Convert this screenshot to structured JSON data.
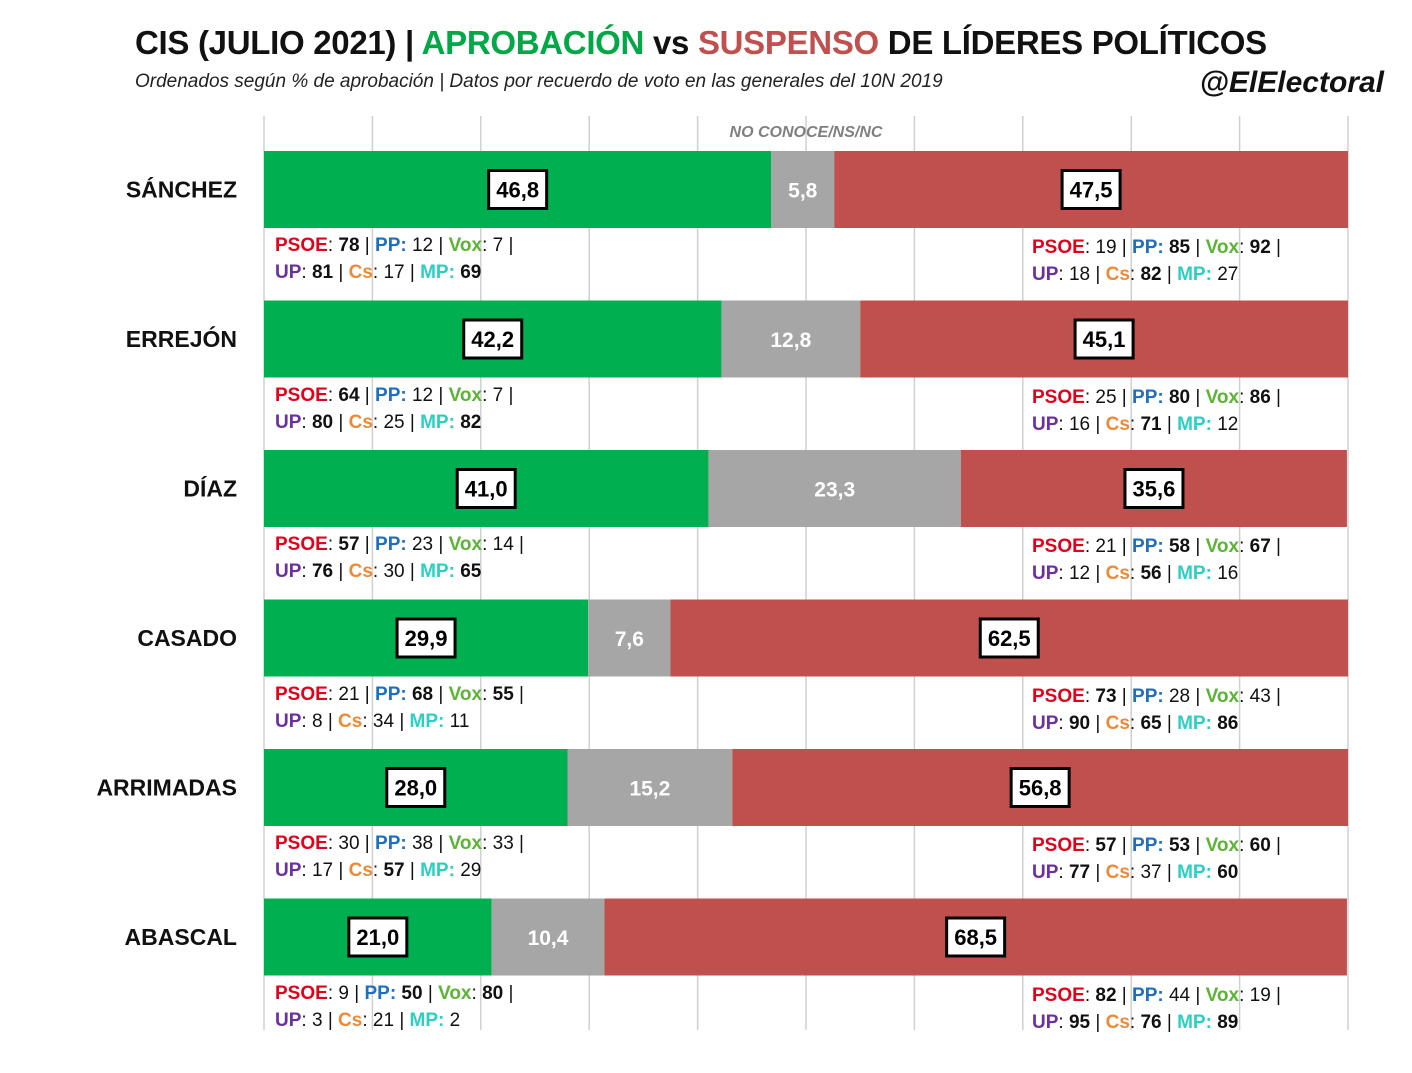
{
  "header": {
    "title_part1": "CIS (JULIO 2021) | ",
    "title_approve": "APROBACIÓN",
    "title_vs": " vs ",
    "title_fail": "SUSPENSO",
    "title_part2": " DE LÍDERES POLÍTICOS",
    "subtitle": "Ordenados según % de aprobación | Datos por recuerdo de voto en las generales del 10N 2019",
    "handle": "@ElElectoral"
  },
  "colors": {
    "approve": "#00b050",
    "unknown": "#a6a6a6",
    "fail": "#c0504d"
  },
  "chart_data": {
    "type": "bar",
    "orientation": "horizontal-stacked-100",
    "middle_segment_label": "NO CONOCE/NS/NC",
    "categories": [
      "SÁNCHEZ",
      "ERREJÓN",
      "DÍAZ",
      "CASADO",
      "ARRIMADAS",
      "ABASCAL"
    ],
    "series": [
      {
        "name": "APROBACIÓN",
        "values": [
          46.8,
          42.2,
          41.0,
          29.9,
          28.0,
          21.0
        ],
        "labels": [
          "46,8",
          "42,2",
          "41,0",
          "29,9",
          "28,0",
          "21,0"
        ]
      },
      {
        "name": "NO CONOCE/NS/NC",
        "values": [
          5.8,
          12.8,
          23.3,
          7.6,
          15.2,
          10.4
        ],
        "labels": [
          "5,8",
          "12,8",
          "23,3",
          "7,6",
          "15,2",
          "10,4"
        ]
      },
      {
        "name": "SUSPENSO",
        "values": [
          47.5,
          45.1,
          35.6,
          62.5,
          56.8,
          68.5
        ],
        "labels": [
          "47,5",
          "45,1",
          "35,6",
          "62,5",
          "56,8",
          "68,5"
        ]
      }
    ],
    "xlim": [
      0,
      100
    ],
    "grid": true,
    "annotations": [
      {
        "approve": {
          "PSOE": 78,
          "PP": 12,
          "Vox": 7,
          "UP": 81,
          "Cs": 17,
          "MP": 69
        },
        "fail": {
          "PSOE": 19,
          "PP": 85,
          "Vox": 92,
          "UP": 18,
          "Cs": 82,
          "MP": 27
        }
      },
      {
        "approve": {
          "PSOE": 64,
          "PP": 12,
          "Vox": 7,
          "UP": 80,
          "Cs": 25,
          "MP": 82
        },
        "fail": {
          "PSOE": 25,
          "PP": 80,
          "Vox": 86,
          "UP": 16,
          "Cs": 71,
          "MP": 12
        }
      },
      {
        "approve": {
          "PSOE": 57,
          "PP": 23,
          "Vox": 14,
          "UP": 76,
          "Cs": 30,
          "MP": 65
        },
        "fail": {
          "PSOE": 21,
          "PP": 58,
          "Vox": 67,
          "UP": 12,
          "Cs": 56,
          "MP": 16
        }
      },
      {
        "approve": {
          "PSOE": 21,
          "PP": 68,
          "Vox": 55,
          "UP": 8,
          "Cs": 34,
          "MP": 11
        },
        "fail": {
          "PSOE": 73,
          "PP": 28,
          "Vox": 43,
          "UP": 90,
          "Cs": 65,
          "MP": 86
        }
      },
      {
        "approve": {
          "PSOE": 30,
          "PP": 38,
          "Vox": 33,
          "UP": 17,
          "Cs": 57,
          "MP": 29
        },
        "fail": {
          "PSOE": 57,
          "PP": 53,
          "Vox": 60,
          "UP": 77,
          "Cs": 37,
          "MP": 60
        }
      },
      {
        "approve": {
          "PSOE": 9,
          "PP": 50,
          "Vox": 80,
          "UP": 3,
          "Cs": 21,
          "MP": 2
        },
        "fail": {
          "PSOE": 82,
          "PP": 44,
          "Vox": 19,
          "UP": 95,
          "Cs": 76,
          "MP": 89
        }
      }
    ]
  }
}
